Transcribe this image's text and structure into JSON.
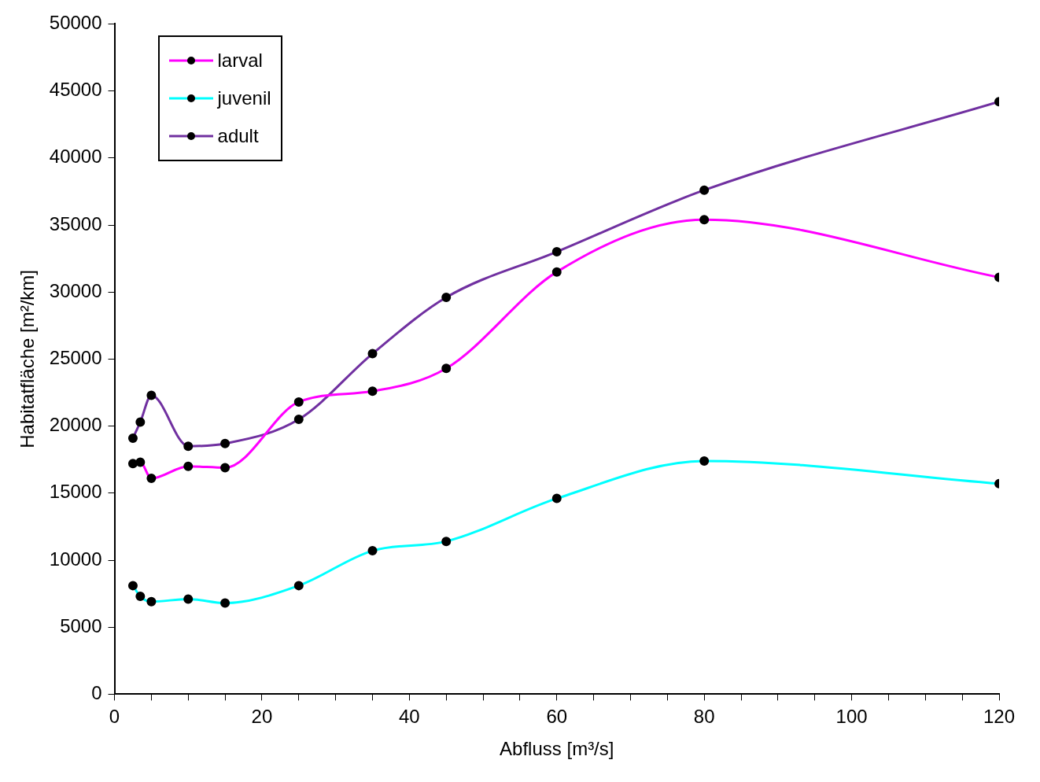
{
  "chart_data": {
    "type": "line",
    "xlabel": "Abfluss [m³/s]",
    "ylabel": "Habitatfläche [m²/km]",
    "x": [
      2.5,
      3.5,
      5,
      10,
      15,
      25,
      35,
      45,
      60,
      80,
      120
    ],
    "series": [
      {
        "name": "larval",
        "color": "#ff00ff",
        "values": [
          17200,
          17300,
          16100,
          17000,
          16900,
          21800,
          22600,
          24300,
          31500,
          35400,
          31100
        ]
      },
      {
        "name": "juvenil",
        "color": "#00ffff",
        "values": [
          8100,
          7300,
          6900,
          7100,
          6800,
          8100,
          10700,
          11400,
          14600,
          17400,
          15700
        ]
      },
      {
        "name": "adult",
        "color": "#7030a0",
        "values": [
          19100,
          20300,
          22300,
          18500,
          18700,
          20500,
          25400,
          29600,
          33000,
          37600,
          44200
        ]
      }
    ],
    "xlim": [
      0,
      120
    ],
    "xticks": [
      0,
      {
        "value": 5,
        "label": null
      },
      {
        "value": 10,
        "label": null
      },
      {
        "value": 15,
        "label": null
      },
      20,
      {
        "value": 25,
        "label": null
      },
      {
        "value": 30,
        "label": null
      },
      {
        "value": 35,
        "label": null
      },
      40,
      {
        "value": 45,
        "label": null
      },
      {
        "value": 50,
        "label": null
      },
      {
        "value": 55,
        "label": null
      },
      60,
      {
        "value": 65,
        "label": null
      },
      {
        "value": 70,
        "label": null
      },
      {
        "value": 75,
        "label": null
      },
      80,
      {
        "value": 85,
        "label": null
      },
      {
        "value": 90,
        "label": null
      },
      {
        "value": 95,
        "label": null
      },
      100,
      {
        "value": 105,
        "label": null
      },
      {
        "value": 110,
        "label": null
      },
      {
        "value": 115,
        "label": null
      },
      120
    ],
    "ylim": [
      0,
      50000
    ],
    "yticks": [
      0,
      5000,
      10000,
      15000,
      20000,
      25000,
      30000,
      35000,
      40000,
      45000,
      50000
    ],
    "grid": false,
    "legend": "top left",
    "marker": "circle",
    "line_style": "solid"
  }
}
